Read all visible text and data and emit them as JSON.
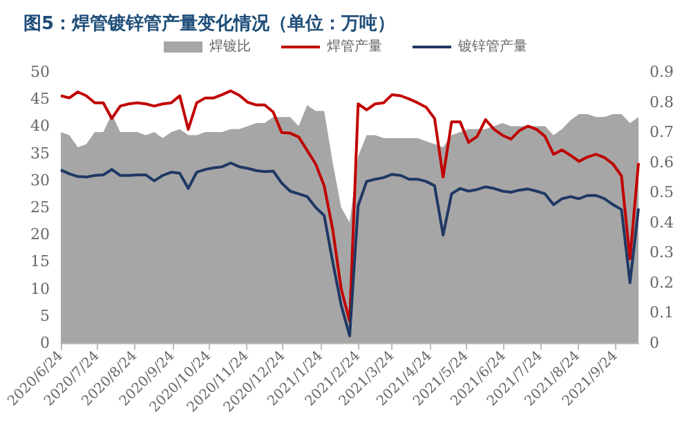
{
  "chart_data": {
    "type": "line",
    "title": "图5：焊管镀锌管产量变化情况（单位：万吨）",
    "x": [
      "2020-06-24",
      "2020-07-01",
      "2020-07-08",
      "2020-07-15",
      "2020-07-22",
      "2020-07-29",
      "2020-08-05",
      "2020-08-12",
      "2020-08-19",
      "2020-08-26",
      "2020-09-02",
      "2020-09-09",
      "2020-09-16",
      "2020-09-23",
      "2020-09-30",
      "2020-10-07",
      "2020-10-14",
      "2020-10-21",
      "2020-10-28",
      "2020-11-04",
      "2020-11-11",
      "2020-11-18",
      "2020-11-25",
      "2020-12-02",
      "2020-12-09",
      "2020-12-16",
      "2020-12-23",
      "2020-12-30",
      "2021-01-06",
      "2021-01-13",
      "2021-01-20",
      "2021-01-27",
      "2021-02-03",
      "2021-02-10",
      "2021-02-17",
      "2021-02-24",
      "2021-03-03",
      "2021-03-10",
      "2021-03-17",
      "2021-03-24",
      "2021-03-31",
      "2021-04-07",
      "2021-04-14",
      "2021-04-21",
      "2021-04-28",
      "2021-05-05",
      "2021-05-12",
      "2021-05-19",
      "2021-05-26",
      "2021-06-02",
      "2021-06-09",
      "2021-06-16",
      "2021-06-23",
      "2021-06-30",
      "2021-07-07",
      "2021-07-14",
      "2021-07-21",
      "2021-07-28",
      "2021-08-04",
      "2021-08-11",
      "2021-08-18",
      "2021-08-25",
      "2021-09-01",
      "2021-09-08",
      "2021-09-15",
      "2021-09-22",
      "2021-09-29",
      "2021-10-06",
      "2021-10-13"
    ],
    "series": [
      {
        "name": "焊镀比",
        "type": "area",
        "axis": "y2",
        "color": "#a6a6a6",
        "values": [
          0.7,
          0.69,
          0.65,
          0.66,
          0.7,
          0.7,
          0.76,
          0.7,
          0.7,
          0.7,
          0.69,
          0.7,
          0.68,
          0.7,
          0.71,
          0.69,
          0.69,
          0.7,
          0.7,
          0.7,
          0.71,
          0.71,
          0.72,
          0.73,
          0.73,
          0.75,
          0.75,
          0.75,
          0.72,
          0.79,
          0.77,
          0.77,
          0.6,
          0.45,
          0.4,
          0.62,
          0.69,
          0.69,
          0.68,
          0.68,
          0.68,
          0.68,
          0.68,
          0.67,
          0.66,
          0.65,
          0.69,
          0.7,
          0.71,
          0.71,
          0.71,
          0.72,
          0.73,
          0.72,
          0.72,
          0.72,
          0.72,
          0.72,
          0.69,
          0.71,
          0.74,
          0.76,
          0.76,
          0.75,
          0.75,
          0.76,
          0.76,
          0.73,
          0.75
        ]
      },
      {
        "name": "焊管产量",
        "color": "#c00000",
        "values": [
          45.6,
          45.2,
          46.3,
          45.6,
          44.3,
          44.3,
          41.4,
          43.7,
          44.1,
          44.3,
          44.1,
          43.7,
          44.1,
          44.3,
          45.6,
          39.4,
          44.3,
          45.2,
          45.2,
          45.8,
          46.5,
          45.7,
          44.4,
          43.9,
          43.9,
          42.6,
          38.8,
          38.7,
          38.0,
          35.5,
          33.0,
          29.0,
          21.0,
          10.0,
          4.0,
          44.1,
          43.0,
          44.1,
          44.3,
          45.8,
          45.6,
          45.0,
          44.3,
          43.5,
          41.4,
          30.6,
          40.8,
          40.8,
          37.0,
          38.1,
          41.2,
          39.4,
          38.3,
          37.6,
          39.2,
          40.0,
          39.4,
          38.1,
          34.8,
          35.6,
          34.6,
          33.5,
          34.3,
          34.8,
          34.2,
          33.0,
          30.8,
          15.5,
          33.2
        ]
      },
      {
        "name": "镀锌管产量",
        "color": "#1f3864",
        "values": [
          31.9,
          31.2,
          30.7,
          30.6,
          30.9,
          31.0,
          32.0,
          30.9,
          30.9,
          31.0,
          31.0,
          29.9,
          30.9,
          31.5,
          31.3,
          28.5,
          31.5,
          32.0,
          32.3,
          32.5,
          33.2,
          32.5,
          32.2,
          31.8,
          31.6,
          31.7,
          29.5,
          28.0,
          27.5,
          27.0,
          25.0,
          23.5,
          15.0,
          7.0,
          1.3,
          25.3,
          29.8,
          30.2,
          30.5,
          31.1,
          30.9,
          30.2,
          30.2,
          29.8,
          29.0,
          19.9,
          27.5,
          28.5,
          28.0,
          28.3,
          28.8,
          28.5,
          28.0,
          27.8,
          28.2,
          28.4,
          28.0,
          27.5,
          25.5,
          26.6,
          27.0,
          26.6,
          27.2,
          27.2,
          26.6,
          25.5,
          24.6,
          11.1,
          24.8
        ]
      }
    ],
    "xlim": [
      "2020-06-24",
      "2021-10-13"
    ],
    "xticks": [
      {
        "value": "2020-06-24",
        "label": "2020/6/24"
      },
      {
        "value": "2020-07-24",
        "label": "2020/7/24"
      },
      {
        "value": "2020-08-24",
        "label": "2020/8/24"
      },
      {
        "value": "2020-09-24",
        "label": "2020/9/24"
      },
      {
        "value": "2020-10-24",
        "label": "2020/10/24"
      },
      {
        "value": "2020-11-24",
        "label": "2020/11/24"
      },
      {
        "value": "2020-12-24",
        "label": "2020/12/24"
      },
      {
        "value": "2021-01-24",
        "label": "2021/1/24"
      },
      {
        "value": "2021-02-24",
        "label": "2021/2/24"
      },
      {
        "value": "2021-03-24",
        "label": "2021/3/24"
      },
      {
        "value": "2021-04-24",
        "label": "2021/4/24"
      },
      {
        "value": "2021-05-24",
        "label": "2021/5/24"
      },
      {
        "value": "2021-06-24",
        "label": "2021/6/24"
      },
      {
        "value": "2021-07-24",
        "label": "2021/7/24"
      },
      {
        "value": "2021-08-24",
        "label": "2021/8/24"
      },
      {
        "value": "2021-09-24",
        "label": "2021/9/24"
      }
    ],
    "ylim": [
      0,
      50
    ],
    "yticks": [
      0,
      5,
      10,
      15,
      20,
      25,
      30,
      35,
      40,
      45,
      50
    ],
    "y2lim": [
      0,
      0.9
    ],
    "y2ticks": [
      0,
      0.1,
      0.2,
      0.3,
      0.4,
      0.5,
      0.6,
      0.7,
      0.8,
      0.9
    ],
    "grid": false,
    "legend": "top",
    "marker": "none",
    "line_style": "solid"
  }
}
